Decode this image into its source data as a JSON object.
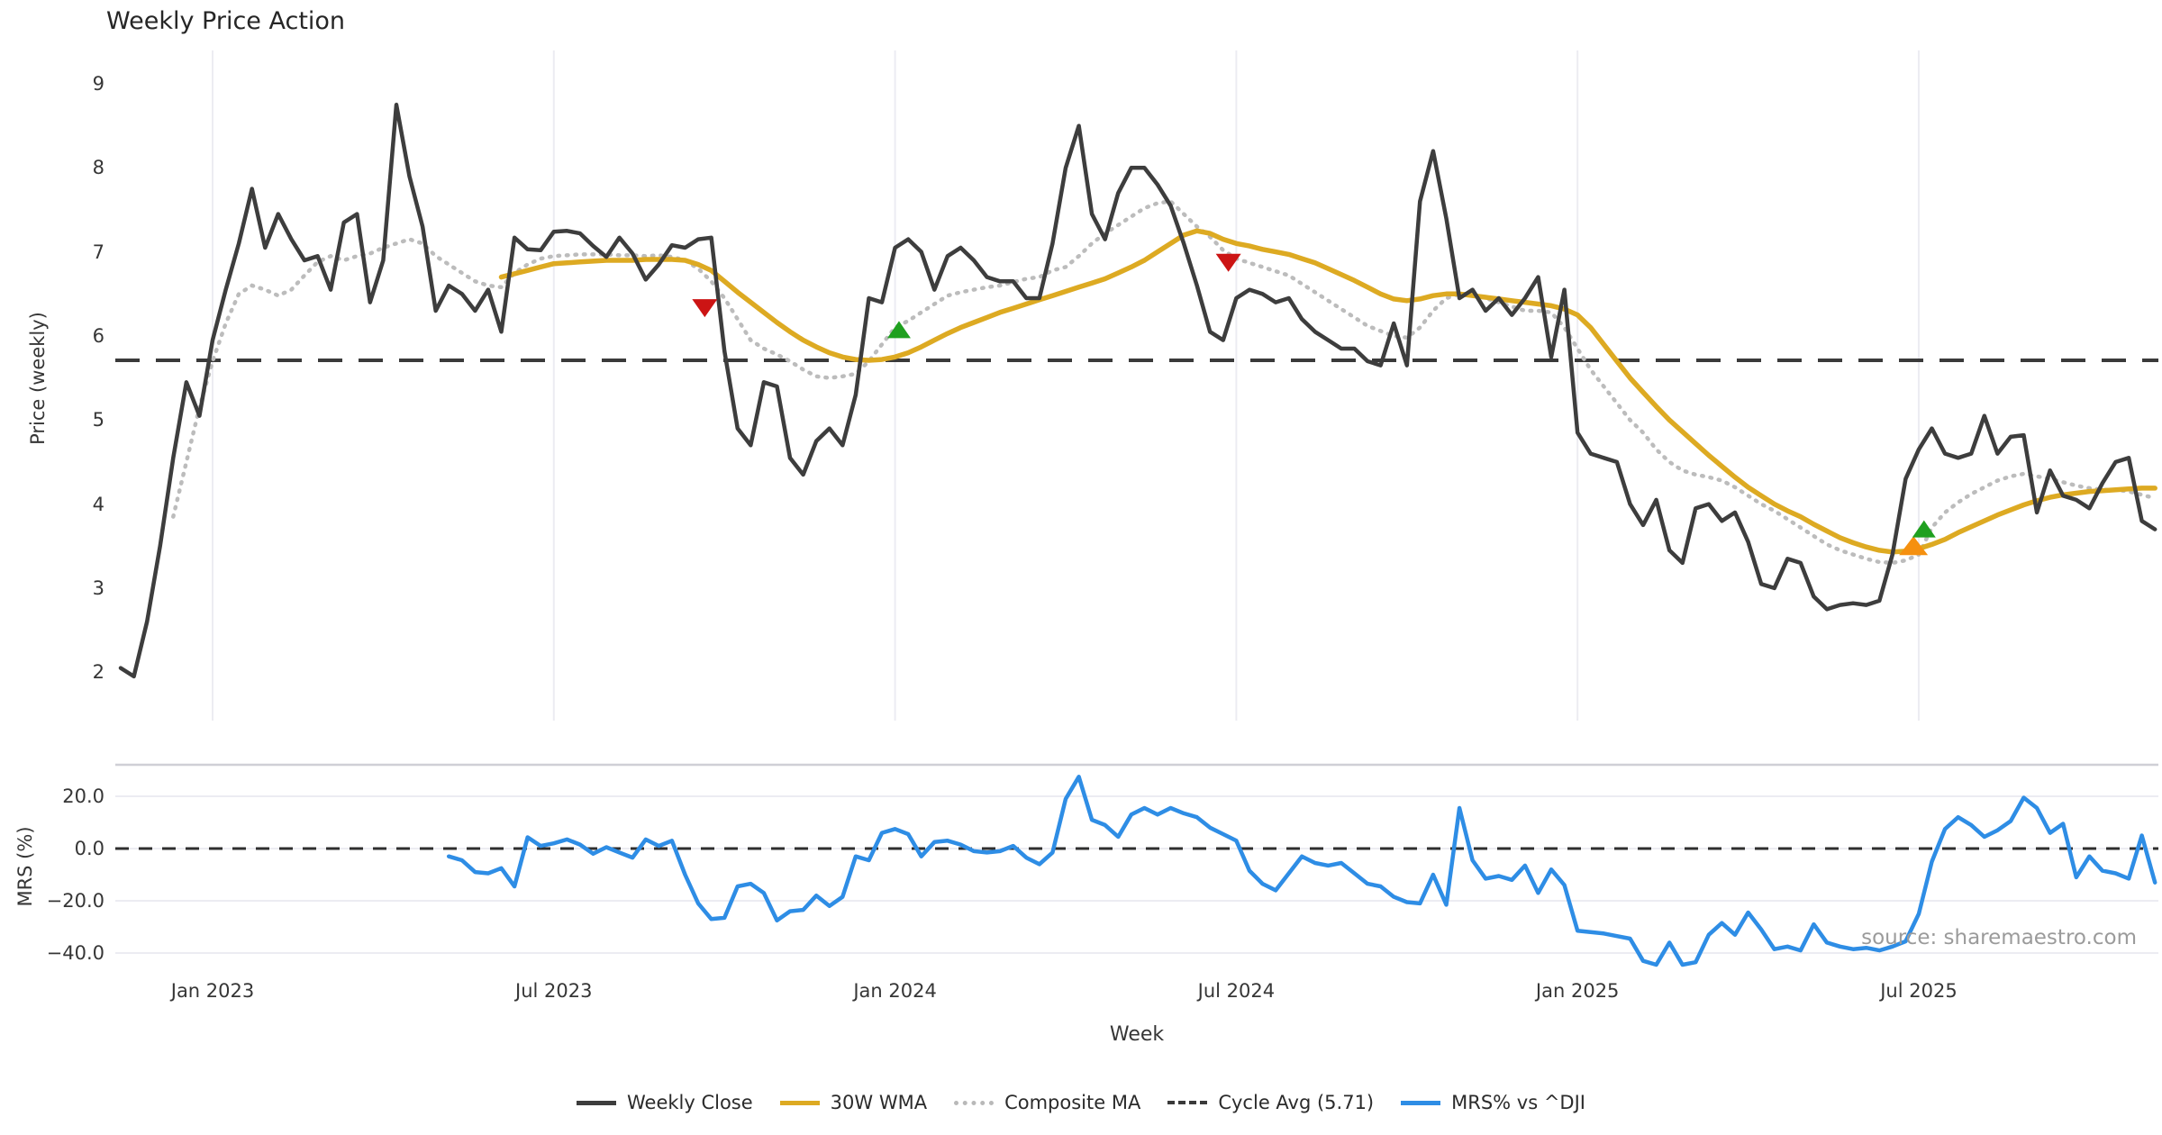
{
  "title": "Weekly Price Action",
  "watermark": "source: sharemaestro.com",
  "axes": {
    "price": {
      "label": "Price (weekly)",
      "ticks": [
        9,
        8,
        7,
        6,
        5,
        4,
        3,
        2
      ]
    },
    "mrs": {
      "label": "MRS (%)",
      "ticks": [
        "20.0",
        "0.0",
        "−20.0",
        "−40.0"
      ],
      "tick_values": [
        20,
        0,
        -20,
        -40
      ]
    },
    "x": {
      "label": "Week",
      "ticks": [
        {
          "label": "Jan 2023",
          "week": 7
        },
        {
          "label": "Jul 2023",
          "week": 33
        },
        {
          "label": "Jan 2024",
          "week": 59
        },
        {
          "label": "Jul 2024",
          "week": 85
        },
        {
          "label": "Jan 2025",
          "week": 111
        },
        {
          "label": "Jul 2025",
          "week": 137
        }
      ]
    }
  },
  "legend": {
    "items": [
      {
        "label": "Weekly Close",
        "swatch": "solid-close"
      },
      {
        "label": "30W WMA",
        "swatch": "solid-wma"
      },
      {
        "label": "Composite MA",
        "swatch": "dotted-comp"
      },
      {
        "label": "Cycle Avg (5.71)",
        "swatch": "dashed-cycle"
      },
      {
        "label": "MRS% vs ^DJI",
        "swatch": "solid-mrs"
      }
    ]
  },
  "colors": {
    "close": "#3d3d3d",
    "wma": "#ddaa22",
    "composite": "#bcbcbc",
    "cycle": "#3a3a3a",
    "mrs": "#2e8de5",
    "sell_marker": "#cc1414",
    "buy_marker": "#1fa01f",
    "orange_marker": "#f5900f",
    "grid": "#ececf2",
    "panel_border": "#cfcfd6",
    "zero_dash": "#2f2f2f"
  },
  "chart_data": {
    "type": "line",
    "x_unit": "week_index",
    "cycle_avg": 5.71,
    "price_ylim": [
      2,
      9
    ],
    "mrs_ylim": [
      -45,
      32
    ],
    "series": [
      {
        "name": "Weekly Close",
        "start_week": 0,
        "values": [
          2.05,
          1.95,
          2.6,
          3.5,
          4.55,
          5.45,
          5.05,
          5.95,
          6.55,
          7.1,
          7.75,
          7.05,
          7.45,
          7.15,
          6.9,
          6.95,
          6.55,
          7.35,
          7.45,
          6.4,
          6.9,
          8.75,
          7.9,
          7.3,
          6.3,
          6.6,
          6.5,
          6.3,
          6.55,
          6.05,
          7.17,
          7.03,
          7.02,
          7.24,
          7.25,
          7.22,
          7.07,
          6.94,
          7.17,
          6.98,
          6.67,
          6.85,
          7.08,
          7.05,
          7.15,
          7.17,
          5.82,
          4.9,
          4.7,
          5.45,
          5.4,
          4.55,
          4.35,
          4.75,
          4.9,
          4.7,
          5.3,
          6.45,
          6.4,
          7.05,
          7.15,
          7.0,
          6.55,
          6.95,
          7.05,
          6.9,
          6.7,
          6.65,
          6.65,
          6.45,
          6.45,
          7.1,
          8.0,
          8.5,
          7.45,
          7.15,
          7.7,
          8.0,
          8.0,
          7.8,
          7.55,
          7.1,
          6.6,
          6.05,
          5.95,
          6.45,
          6.55,
          6.5,
          6.4,
          6.45,
          6.2,
          6.05,
          5.95,
          5.85,
          5.85,
          5.7,
          5.65,
          6.15,
          5.65,
          7.6,
          8.2,
          7.4,
          6.45,
          6.55,
          6.3,
          6.45,
          6.25,
          6.45,
          6.7,
          5.75,
          6.55,
          4.85,
          4.6,
          4.55,
          4.5,
          4.0,
          3.75,
          4.05,
          3.45,
          3.3,
          3.95,
          4.0,
          3.8,
          3.9,
          3.55,
          3.05,
          3.0,
          3.35,
          3.3,
          2.9,
          2.75,
          2.8,
          2.82,
          2.8,
          2.85,
          3.4,
          4.3,
          4.65,
          4.9,
          4.6,
          4.55,
          4.6,
          5.05,
          4.6,
          4.8,
          4.82,
          3.9,
          4.4,
          4.1,
          4.05,
          3.95,
          4.25,
          4.5,
          4.55,
          3.8,
          3.7
        ]
      },
      {
        "name": "30W WMA",
        "start_week": 29,
        "values": [
          6.7,
          6.74,
          6.78,
          6.82,
          6.86,
          6.87,
          6.88,
          6.89,
          6.9,
          6.9,
          6.9,
          6.91,
          6.91,
          6.91,
          6.9,
          6.85,
          6.78,
          6.65,
          6.52,
          6.4,
          6.28,
          6.16,
          6.05,
          5.95,
          5.87,
          5.8,
          5.75,
          5.72,
          5.71,
          5.72,
          5.75,
          5.8,
          5.87,
          5.95,
          6.03,
          6.1,
          6.16,
          6.22,
          6.28,
          6.33,
          6.38,
          6.43,
          6.48,
          6.53,
          6.58,
          6.63,
          6.68,
          6.75,
          6.82,
          6.9,
          7.0,
          7.1,
          7.2,
          7.25,
          7.22,
          7.15,
          7.1,
          7.07,
          7.03,
          7.0,
          6.97,
          6.92,
          6.87,
          6.8,
          6.73,
          6.66,
          6.58,
          6.5,
          6.44,
          6.42,
          6.44,
          6.48,
          6.5,
          6.5,
          6.48,
          6.46,
          6.44,
          6.42,
          6.4,
          6.38,
          6.36,
          6.32,
          6.25,
          6.1,
          5.9,
          5.7,
          5.5,
          5.33,
          5.16,
          5.0,
          4.86,
          4.72,
          4.58,
          4.45,
          4.32,
          4.2,
          4.1,
          4.0,
          3.92,
          3.85,
          3.76,
          3.68,
          3.6,
          3.54,
          3.49,
          3.45,
          3.43,
          3.44,
          3.47,
          3.52,
          3.58,
          3.66,
          3.73,
          3.8,
          3.87,
          3.93,
          3.99,
          4.04,
          4.08,
          4.11,
          4.13,
          4.15,
          4.16,
          4.17,
          4.18,
          4.19,
          4.19
        ]
      },
      {
        "name": "Composite MA",
        "start_week": 4,
        "values": [
          3.85,
          4.5,
          5.15,
          5.7,
          6.15,
          6.5,
          6.6,
          6.55,
          6.48,
          6.55,
          6.72,
          6.88,
          6.95,
          6.9,
          6.95,
          6.98,
          7.05,
          7.1,
          7.15,
          7.1,
          6.95,
          6.85,
          6.75,
          6.65,
          6.6,
          6.58,
          6.75,
          6.85,
          6.92,
          6.95,
          6.96,
          6.97,
          6.97,
          6.97,
          6.96,
          6.96,
          6.95,
          6.96,
          6.94,
          6.9,
          6.8,
          6.65,
          6.45,
          6.2,
          5.95,
          5.85,
          5.78,
          5.7,
          5.6,
          5.52,
          5.5,
          5.52,
          5.55,
          5.7,
          5.9,
          6.1,
          6.18,
          6.28,
          6.38,
          6.48,
          6.52,
          6.55,
          6.58,
          6.6,
          6.64,
          6.68,
          6.7,
          6.78,
          6.82,
          6.95,
          7.1,
          7.22,
          7.32,
          7.42,
          7.52,
          7.58,
          7.6,
          7.45,
          7.3,
          7.18,
          7.02,
          6.92,
          6.87,
          6.82,
          6.77,
          6.72,
          6.62,
          6.52,
          6.42,
          6.32,
          6.22,
          6.12,
          6.06,
          6.0,
          5.98,
          6.1,
          6.3,
          6.45,
          6.5,
          6.5,
          6.45,
          6.4,
          6.35,
          6.3,
          6.3,
          6.28,
          6.1,
          5.85,
          5.6,
          5.4,
          5.2,
          5.0,
          4.85,
          4.65,
          4.5,
          4.4,
          4.35,
          4.32,
          4.28,
          4.2,
          4.1,
          4.0,
          3.92,
          3.82,
          3.72,
          3.62,
          3.52,
          3.45,
          3.4,
          3.35,
          3.31,
          3.3,
          3.33,
          3.4,
          3.72,
          3.9,
          4.02,
          4.12,
          4.2,
          4.28,
          4.33,
          4.36,
          4.33,
          4.3,
          4.26,
          4.22,
          4.19,
          4.17,
          4.17,
          4.15,
          4.11,
          4.07
        ]
      },
      {
        "name": "MRS% vs ^DJI",
        "start_week": 25,
        "values": [
          -3,
          -4.5,
          -9,
          -9.5,
          -7.5,
          -14.5,
          4.3,
          1,
          2,
          3.5,
          1.5,
          -2,
          0.5,
          -1.5,
          -3.5,
          3.5,
          1,
          3,
          -10,
          -21,
          -27,
          -26.5,
          -14.5,
          -13.5,
          -17,
          -27.5,
          -24,
          -23.5,
          -18,
          -22,
          -18.5,
          -3,
          -4.5,
          6,
          7.5,
          5.5,
          -3,
          2.5,
          3,
          1.5,
          -1,
          -1.5,
          -1,
          1,
          -3.5,
          -6,
          -1.5,
          19,
          27.5,
          11,
          9,
          4.5,
          13,
          15.5,
          13,
          15.5,
          13.5,
          12,
          8,
          5.5,
          3,
          -8.5,
          -13.5,
          -16,
          -9.5,
          -3,
          -5.5,
          -6.5,
          -5.5,
          -9.5,
          -13.5,
          -14.5,
          -18.5,
          -20.5,
          -21,
          -10,
          -21.5,
          15.5,
          -4.5,
          -11.5,
          -10.5,
          -12,
          -6.5,
          -17,
          -8,
          -14,
          -31.5,
          -32,
          -32.5,
          -33.5,
          -34.5,
          -43,
          -44.5,
          -36,
          -44.5,
          -43.5,
          -33,
          -28.5,
          -33,
          -24.5,
          -31,
          -38.5,
          -37.5,
          -39,
          -29,
          -36,
          -37.5,
          -38.5,
          -38,
          -39,
          -37.5,
          -35.5,
          -25,
          -5,
          7.5,
          12,
          9,
          4.5,
          7,
          10.5,
          19.5,
          15.5,
          6,
          9.5,
          -11,
          -3,
          -8.5,
          -9.5,
          -11.5,
          5,
          -13
        ]
      }
    ],
    "markers": {
      "sell": [
        {
          "week": 44.5,
          "price": 6.33
        },
        {
          "week": 84.4,
          "price": 6.87
        }
      ],
      "buy": [
        {
          "week": 59.3,
          "price": 6.07
        },
        {
          "week": 137.4,
          "price": 3.7
        }
      ],
      "orange": [
        {
          "week": 136.6,
          "price": 3.5
        }
      ]
    }
  }
}
